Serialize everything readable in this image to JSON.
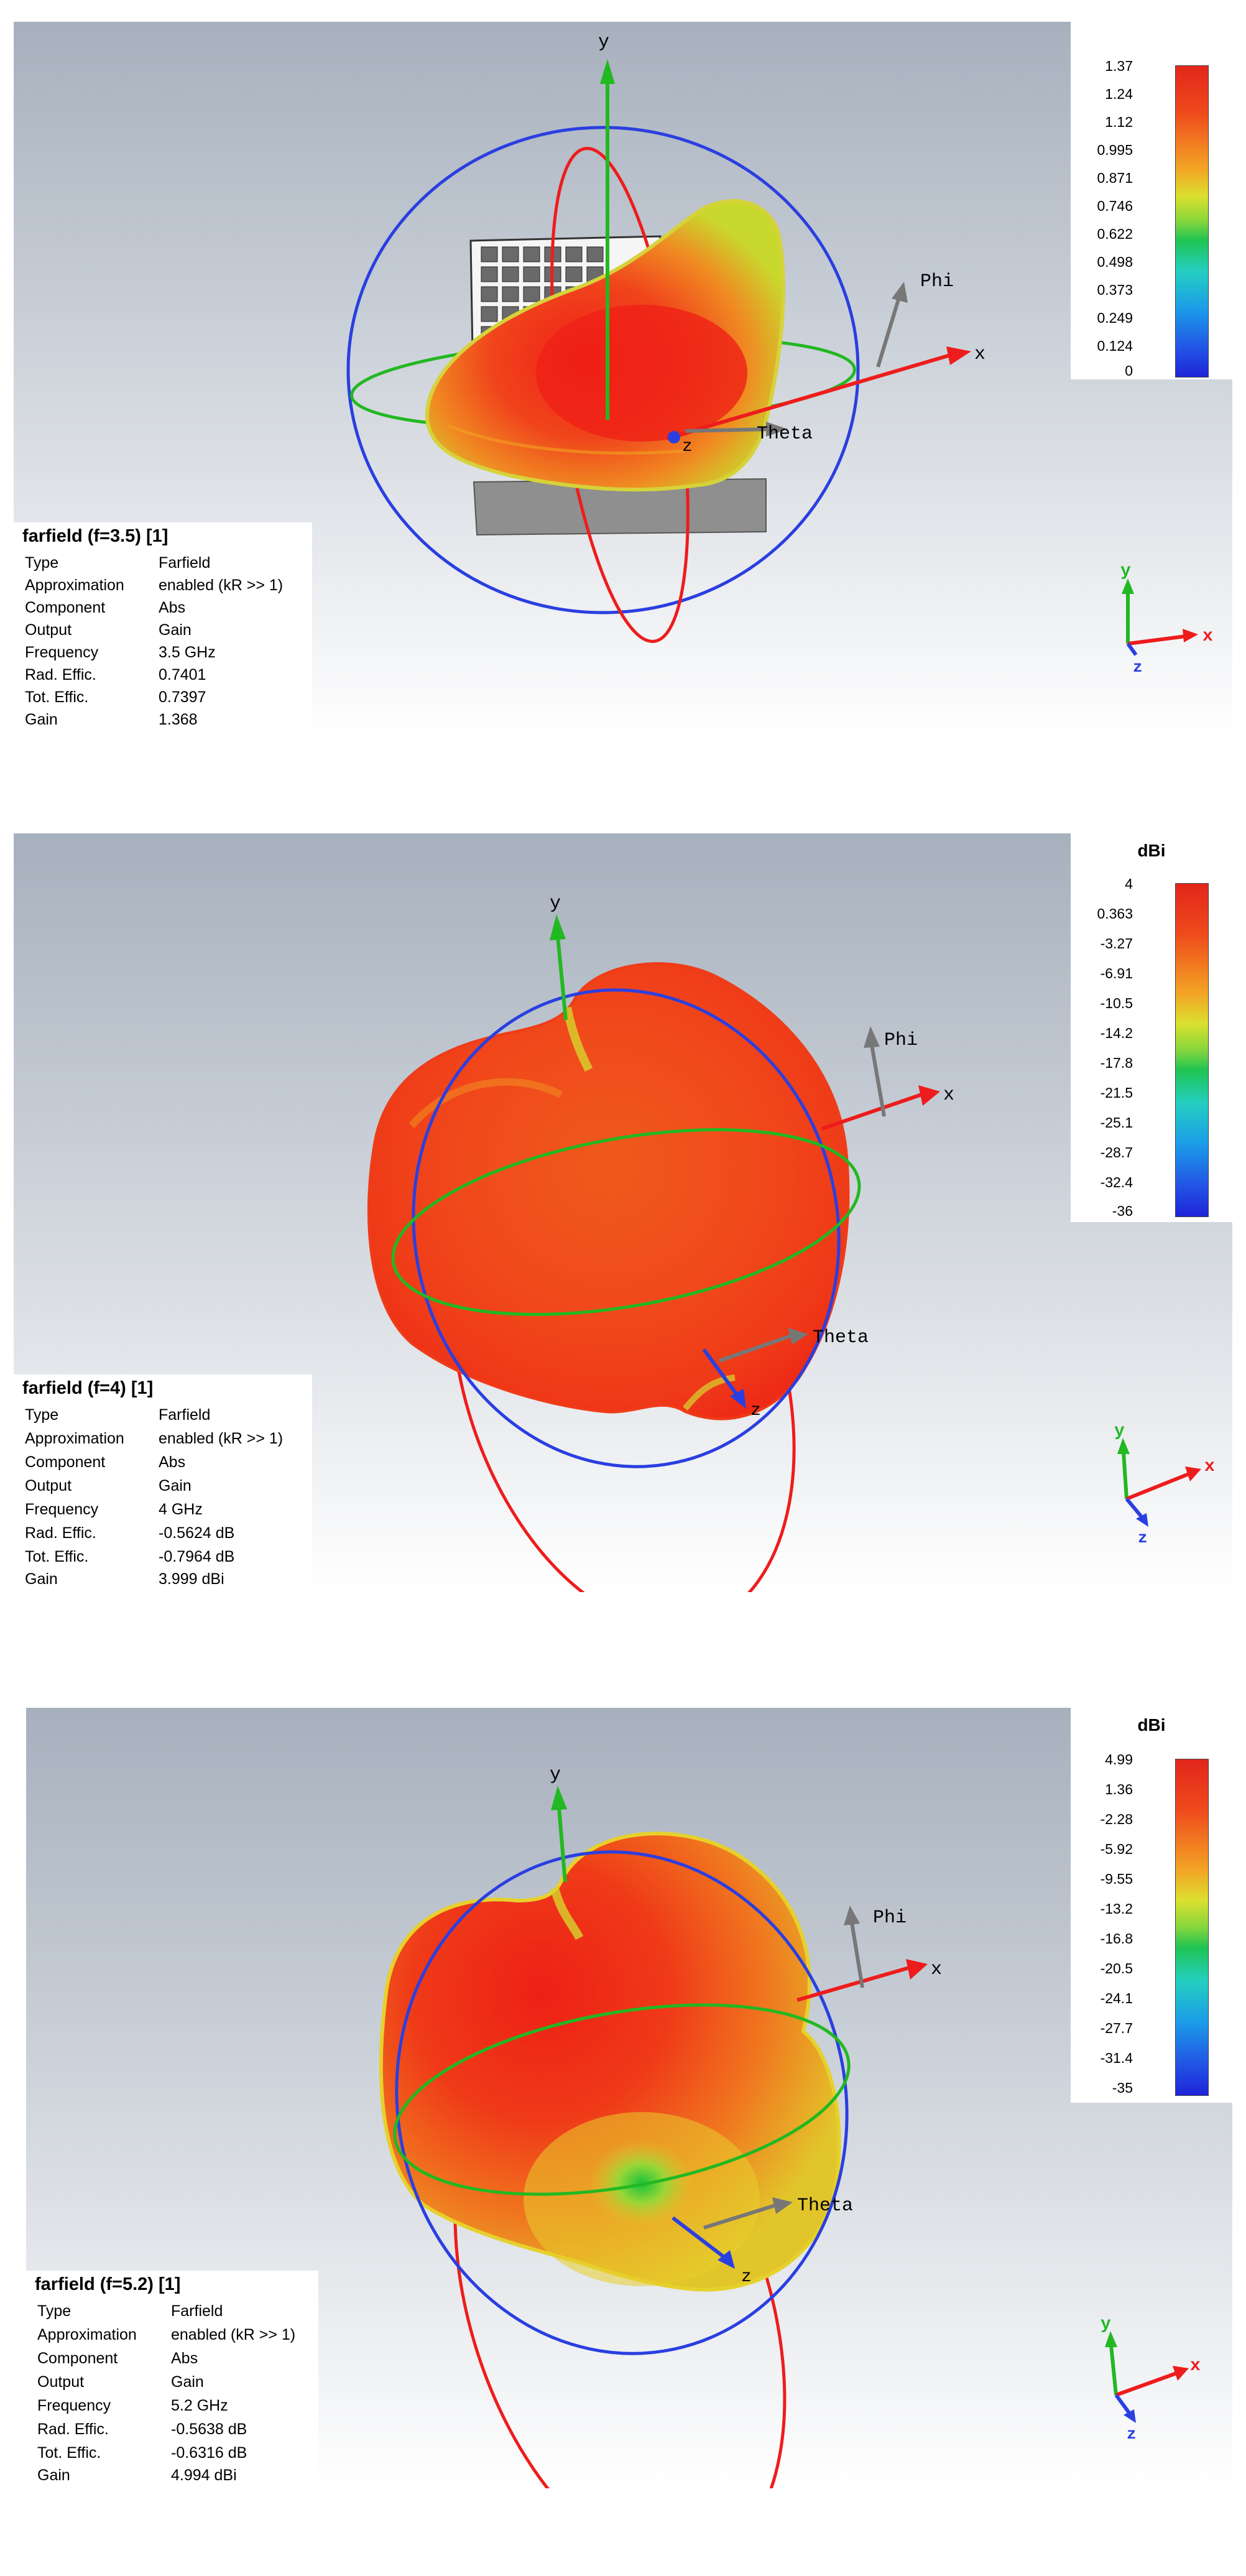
{
  "panels": [
    {
      "title": "farfield (f=3.5) [1]",
      "axis_labels": {
        "x": "x",
        "y": "y",
        "z": "z",
        "phi": "Phi",
        "theta": "Theta"
      },
      "colorbar": {
        "unit": "",
        "ticks": [
          "1.37",
          "1.24",
          "1.12",
          "0.995",
          "0.871",
          "0.746",
          "0.622",
          "0.498",
          "0.373",
          "0.249",
          "0.124",
          "0"
        ]
      },
      "info": [
        {
          "key": "Type",
          "value": "Farfield"
        },
        {
          "key": "Approximation",
          "value": "enabled (kR >> 1)"
        },
        {
          "key": "Component",
          "value": "Abs"
        },
        {
          "key": "Output",
          "value": "Gain"
        },
        {
          "key": "Frequency",
          "value": "3.5 GHz"
        },
        {
          "key": "Rad. Effic.",
          "value": "0.7401"
        },
        {
          "key": "Tot. Effic.",
          "value": "0.7397"
        },
        {
          "key": "Gain",
          "value": "1.368"
        }
      ]
    },
    {
      "title": "farfield (f=4) [1]",
      "axis_labels": {
        "x": "x",
        "y": "y",
        "z": "z",
        "phi": "Phi",
        "theta": "Theta"
      },
      "colorbar": {
        "unit": "dBi",
        "ticks": [
          "4",
          "0.363",
          "-3.27",
          "-6.91",
          "-10.5",
          "-14.2",
          "-17.8",
          "-21.5",
          "-25.1",
          "-28.7",
          "-32.4",
          "-36"
        ]
      },
      "info": [
        {
          "key": "Type",
          "value": "Farfield"
        },
        {
          "key": "Approximation",
          "value": "enabled (kR >> 1)"
        },
        {
          "key": "Component",
          "value": "Abs"
        },
        {
          "key": "Output",
          "value": "Gain"
        },
        {
          "key": "Frequency",
          "value": "4 GHz"
        },
        {
          "key": "Rad. Effic.",
          "value": "-0.5624 dB"
        },
        {
          "key": "Tot. Effic.",
          "value": "-0.7964 dB"
        },
        {
          "key": "Gain",
          "value": "3.999 dBi"
        }
      ]
    },
    {
      "title": "farfield (f=5.2) [1]",
      "axis_labels": {
        "x": "x",
        "y": "y",
        "z": "z",
        "phi": "Phi",
        "theta": "Theta"
      },
      "colorbar": {
        "unit": "dBi",
        "ticks": [
          "4.99",
          "1.36",
          "-2.28",
          "-5.92",
          "-9.55",
          "-13.2",
          "-16.8",
          "-20.5",
          "-24.1",
          "-27.7",
          "-31.4",
          "-35"
        ]
      },
      "info": [
        {
          "key": "Type",
          "value": "Farfield"
        },
        {
          "key": "Approximation",
          "value": "enabled (kR >> 1)"
        },
        {
          "key": "Component",
          "value": "Abs"
        },
        {
          "key": "Output",
          "value": "Gain"
        },
        {
          "key": "Frequency",
          "value": "5.2 GHz"
        },
        {
          "key": "Rad. Effic.",
          "value": "-0.5638 dB"
        },
        {
          "key": "Tot. Effic.",
          "value": "-0.6316 dB"
        },
        {
          "key": "Gain",
          "value": "4.994 dBi"
        }
      ]
    }
  ],
  "colors": {
    "x_axis": "#ee1c1c",
    "y_axis": "#22b822",
    "z_axis": "#2a3fe0",
    "phi_theta": "#777777",
    "pattern_max": "#ee2a17",
    "pattern_mid": "#f07a1e",
    "pattern_low": "#c8dc2c"
  }
}
